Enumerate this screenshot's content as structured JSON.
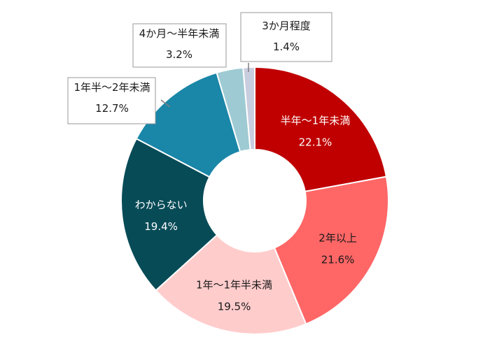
{
  "chart_data": {
    "type": "pie",
    "variant": "donut",
    "start_angle_deg": 0,
    "direction": "clockwise",
    "slices": [
      {
        "label": "半年～1年未満",
        "value": 22.1,
        "value_label": "22.1%",
        "color": "#c00000",
        "label_color": "#ffffff",
        "label_placement": "inside"
      },
      {
        "label": "2年以上",
        "value": 21.6,
        "value_label": "21.6%",
        "color": "#ff6666",
        "label_color": "#1a1a1a",
        "label_placement": "inside"
      },
      {
        "label": "1年～1年半未満",
        "value": 19.5,
        "value_label": "19.5%",
        "color": "#ffcccc",
        "label_color": "#1a1a1a",
        "label_placement": "inside"
      },
      {
        "label": "わからない",
        "value": 19.4,
        "value_label": "19.4%",
        "color": "#074b57",
        "label_color": "#ffffff",
        "label_placement": "inside"
      },
      {
        "label": "1年半～2年未満",
        "value": 12.7,
        "value_label": "12.7%",
        "color": "#1a86a8",
        "label_color": "#1a1a1a",
        "label_placement": "callout"
      },
      {
        "label": "4か月～半年未満",
        "value": 3.2,
        "value_label": "3.2%",
        "color": "#9ecad3",
        "label_color": "#1a1a1a",
        "label_placement": "callout"
      },
      {
        "label": "3か月程度",
        "value": 1.4,
        "value_label": "1.4%",
        "color": "#c9cde0",
        "label_color": "#1a1a1a",
        "label_placement": "callout"
      }
    ],
    "legend": "none"
  }
}
